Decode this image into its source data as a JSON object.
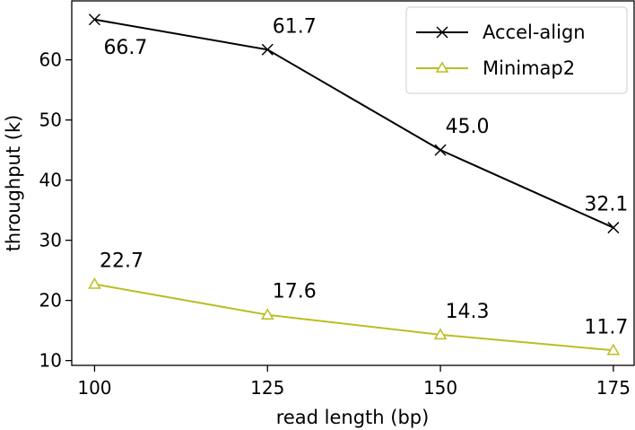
{
  "chart_data": {
    "type": "line",
    "x": [
      100,
      125,
      150,
      175
    ],
    "xlabel": "read length (bp)",
    "ylabel": "throughput (k)",
    "xticks": [
      "100",
      "125",
      "150",
      "175"
    ],
    "yticks": [
      "10",
      "20",
      "30",
      "40",
      "50",
      "60"
    ],
    "xlim": [
      96.7,
      178
    ],
    "ylim": [
      9.2,
      69.8
    ],
    "grid": false,
    "legend_position": "top-right",
    "series": [
      {
        "name": "Accel-align",
        "values": [
          66.7,
          61.7,
          45.0,
          32.1
        ],
        "labels": [
          "66.7",
          "61.7",
          "45.0",
          "32.1"
        ],
        "color": "#000000",
        "marker": "x"
      },
      {
        "name": "Minimap2",
        "values": [
          22.7,
          17.6,
          14.3,
          11.7
        ],
        "labels": [
          "22.7",
          "17.6",
          "14.3",
          "11.7"
        ],
        "color": "#bcbd22",
        "marker": "triangle"
      }
    ]
  }
}
